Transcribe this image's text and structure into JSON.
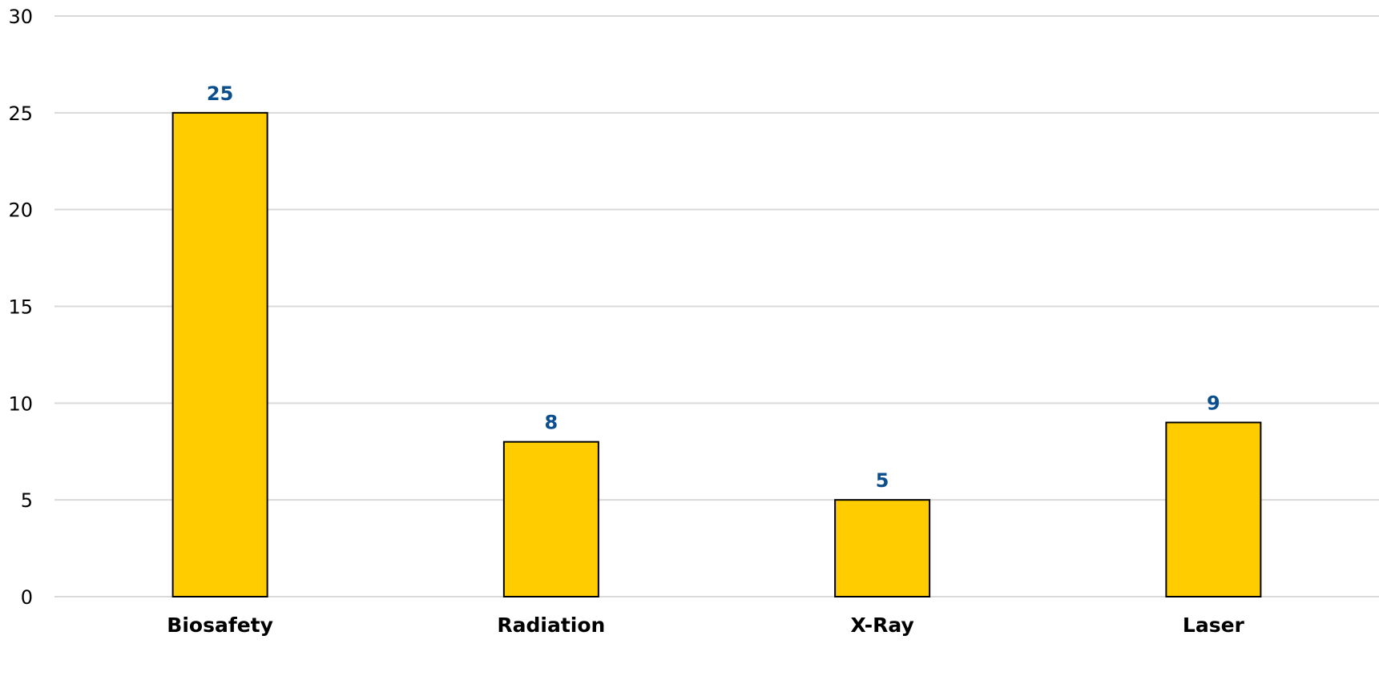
{
  "chart_data": {
    "type": "bar",
    "categories": [
      "Biosafety",
      "Radiation",
      "X-Ray",
      "Laser"
    ],
    "values": [
      25,
      8,
      5,
      9
    ],
    "data_labels": [
      "25",
      "8",
      "5",
      "9"
    ],
    "title": "",
    "xlabel": "",
    "ylabel": "",
    "ylim": [
      0,
      30
    ],
    "yticks": [
      0,
      5,
      10,
      15,
      20,
      25,
      30
    ],
    "grid": true,
    "legend": "none"
  },
  "colors": {
    "bar_fill": "#FFCC00",
    "bar_stroke": "#000000",
    "data_label": "#0B4F8E",
    "grid": "#D9D9D9"
  }
}
